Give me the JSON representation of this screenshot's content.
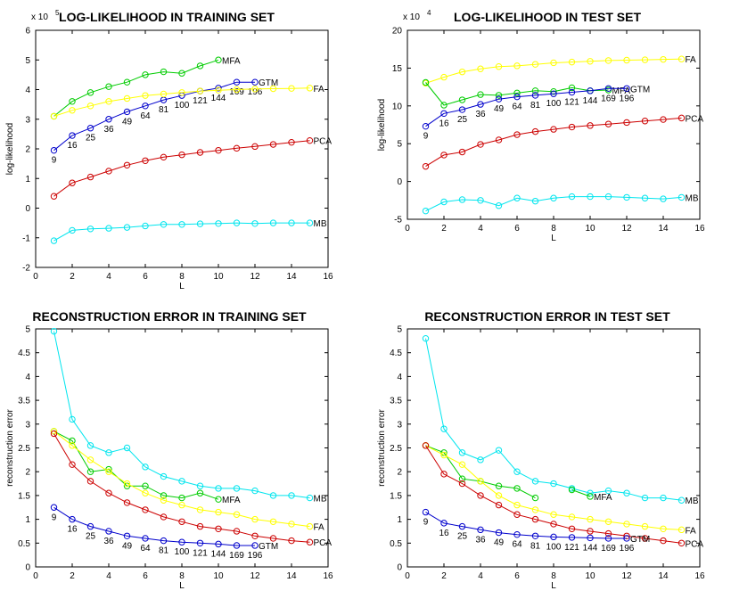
{
  "chart_data": [
    {
      "type": "line",
      "title": "LOG-LIKELIHOOD IN TRAINING SET",
      "xlabel": "L",
      "ylabel": "log-likelihood",
      "y_exponent_label": "x 10",
      "y_exponent_power": "5",
      "xlim": [
        0,
        16
      ],
      "ylim": [
        -2,
        6
      ],
      "xticks": [
        0,
        2,
        4,
        6,
        8,
        10,
        12,
        14,
        16
      ],
      "yticks": [
        -2,
        -1,
        0,
        1,
        2,
        3,
        4,
        5,
        6
      ],
      "grid": false,
      "series": [
        {
          "name": "MFA",
          "color": "#00cc00",
          "x": [
            1,
            2,
            3,
            4,
            5,
            6,
            7,
            8,
            9,
            10
          ],
          "y": [
            3.1,
            3.6,
            3.9,
            4.1,
            4.25,
            4.5,
            4.6,
            4.55,
            4.8,
            5.0
          ]
        },
        {
          "name": "GTM",
          "color": "#0000cc",
          "x": [
            1,
            2,
            3,
            4,
            5,
            6,
            7,
            8,
            9,
            10,
            11,
            12
          ],
          "y": [
            1.95,
            2.45,
            2.7,
            3.0,
            3.25,
            3.45,
            3.65,
            3.8,
            3.95,
            4.05,
            4.25,
            4.25
          ],
          "point_labels": [
            "9",
            "16",
            "25",
            "36",
            "49",
            "64",
            "81",
            "100",
            "121",
            "144",
            "169",
            "196"
          ]
        },
        {
          "name": "FA",
          "color": "#ffff00",
          "x": [
            1,
            2,
            3,
            4,
            5,
            6,
            7,
            8,
            9,
            10,
            11,
            12,
            13,
            14,
            15
          ],
          "y": [
            3.1,
            3.3,
            3.45,
            3.6,
            3.7,
            3.8,
            3.85,
            3.9,
            3.95,
            3.98,
            4.0,
            4.02,
            4.03,
            4.04,
            4.05
          ]
        },
        {
          "name": "PCA",
          "color": "#cc0000",
          "x": [
            1,
            2,
            3,
            4,
            5,
            6,
            7,
            8,
            9,
            10,
            11,
            12,
            13,
            14,
            15
          ],
          "y": [
            0.4,
            0.85,
            1.05,
            1.25,
            1.45,
            1.6,
            1.72,
            1.8,
            1.88,
            1.95,
            2.02,
            2.08,
            2.15,
            2.22,
            2.28
          ]
        },
        {
          "name": "MB",
          "color": "#00e5ee",
          "x": [
            1,
            2,
            3,
            4,
            5,
            6,
            7,
            8,
            9,
            10,
            11,
            12,
            13,
            14,
            15
          ],
          "y": [
            -1.1,
            -0.75,
            -0.7,
            -0.68,
            -0.65,
            -0.6,
            -0.55,
            -0.55,
            -0.53,
            -0.52,
            -0.5,
            -0.52,
            -0.5,
            -0.5,
            -0.5
          ]
        }
      ]
    },
    {
      "type": "line",
      "title": "LOG-LIKELIHOOD IN TEST SET",
      "xlabel": "L",
      "ylabel": "log-likelihood",
      "y_exponent_label": "x 10",
      "y_exponent_power": "4",
      "xlim": [
        0,
        16
      ],
      "ylim": [
        -5,
        20
      ],
      "xticks": [
        0,
        2,
        4,
        6,
        8,
        10,
        12,
        14,
        16
      ],
      "yticks": [
        -5,
        0,
        5,
        10,
        15,
        20
      ],
      "grid": false,
      "series": [
        {
          "name": "FA",
          "color": "#ffff00",
          "x": [
            1,
            2,
            3,
            4,
            5,
            6,
            7,
            8,
            9,
            10,
            11,
            12,
            13,
            14,
            15
          ],
          "y": [
            13.0,
            13.8,
            14.5,
            14.9,
            15.2,
            15.3,
            15.5,
            15.7,
            15.8,
            15.9,
            16.0,
            16.05,
            16.1,
            16.15,
            16.2
          ]
        },
        {
          "name": "MFA",
          "color": "#00cc00",
          "x": [
            1,
            2,
            3,
            4,
            5,
            6,
            7,
            8,
            9,
            10,
            11
          ],
          "y": [
            13.1,
            10.1,
            10.8,
            11.5,
            11.4,
            11.7,
            12.0,
            11.9,
            12.4,
            12.0,
            12.1
          ]
        },
        {
          "name": "GTM",
          "color": "#0000cc",
          "x": [
            1,
            2,
            3,
            4,
            5,
            6,
            7,
            8,
            9,
            10,
            11,
            12
          ],
          "y": [
            7.3,
            9.0,
            9.5,
            10.2,
            10.9,
            11.2,
            11.4,
            11.6,
            11.8,
            12.0,
            12.3,
            12.3
          ],
          "point_labels": [
            "9",
            "16",
            "25",
            "36",
            "49",
            "64",
            "81",
            "100",
            "121",
            "144",
            "169",
            "196"
          ]
        },
        {
          "name": "PCA",
          "color": "#cc0000",
          "x": [
            1,
            2,
            3,
            4,
            5,
            6,
            7,
            8,
            9,
            10,
            11,
            12,
            13,
            14,
            15
          ],
          "y": [
            2.0,
            3.5,
            3.9,
            4.9,
            5.5,
            6.2,
            6.6,
            6.9,
            7.2,
            7.4,
            7.6,
            7.8,
            8.0,
            8.2,
            8.4
          ]
        },
        {
          "name": "MB",
          "color": "#00e5ee",
          "x": [
            1,
            2,
            3,
            4,
            5,
            6,
            7,
            8,
            9,
            10,
            11,
            12,
            13,
            14,
            15
          ],
          "y": [
            -3.9,
            -2.7,
            -2.4,
            -2.5,
            -3.2,
            -2.2,
            -2.6,
            -2.2,
            -2.0,
            -2.0,
            -2.0,
            -2.1,
            -2.2,
            -2.3,
            -2.1
          ]
        }
      ]
    },
    {
      "type": "line",
      "title": "RECONSTRUCTION ERROR IN TRAINING SET",
      "xlabel": "L",
      "ylabel": "reconstruction error",
      "xlim": [
        0,
        16
      ],
      "ylim": [
        0,
        5
      ],
      "xticks": [
        0,
        2,
        4,
        6,
        8,
        10,
        12,
        14,
        16
      ],
      "yticks": [
        0,
        0.5,
        1,
        1.5,
        2,
        2.5,
        3,
        3.5,
        4,
        4.5,
        5
      ],
      "grid": false,
      "series": [
        {
          "name": "MB",
          "color": "#00e5ee",
          "x": [
            1,
            2,
            3,
            4,
            5,
            6,
            7,
            8,
            9,
            10,
            11,
            12,
            13,
            14,
            15
          ],
          "y": [
            4.95,
            3.1,
            2.55,
            2.4,
            2.5,
            2.1,
            1.9,
            1.8,
            1.7,
            1.65,
            1.65,
            1.6,
            1.5,
            1.5,
            1.45
          ]
        },
        {
          "name": "MFA",
          "color": "#00cc00",
          "x": [
            1,
            2,
            3,
            4,
            5,
            6,
            7,
            8,
            9,
            10
          ],
          "y": [
            2.85,
            2.65,
            2.0,
            2.05,
            1.7,
            1.7,
            1.5,
            1.45,
            1.55,
            1.42
          ]
        },
        {
          "name": "FA",
          "color": "#ffff00",
          "x": [
            1,
            2,
            3,
            4,
            5,
            6,
            7,
            8,
            9,
            10,
            11,
            12,
            13,
            14,
            15
          ],
          "y": [
            2.85,
            2.55,
            2.25,
            2.0,
            1.75,
            1.55,
            1.4,
            1.3,
            1.2,
            1.15,
            1.1,
            1.0,
            0.95,
            0.9,
            0.85
          ]
        },
        {
          "name": "PCA",
          "color": "#cc0000",
          "x": [
            1,
            2,
            3,
            4,
            5,
            6,
            7,
            8,
            9,
            10,
            11,
            12,
            13,
            14,
            15
          ],
          "y": [
            2.8,
            2.15,
            1.8,
            1.55,
            1.35,
            1.2,
            1.05,
            0.95,
            0.85,
            0.8,
            0.75,
            0.65,
            0.6,
            0.55,
            0.52
          ]
        },
        {
          "name": "GTM",
          "color": "#0000cc",
          "x": [
            1,
            2,
            3,
            4,
            5,
            6,
            7,
            8,
            9,
            10,
            11,
            12
          ],
          "y": [
            1.25,
            1.0,
            0.85,
            0.75,
            0.65,
            0.6,
            0.55,
            0.52,
            0.5,
            0.48,
            0.45,
            0.45
          ],
          "point_labels": [
            "9",
            "16",
            "25",
            "36",
            "49",
            "64",
            "81",
            "100",
            "121",
            "144",
            "169",
            "196"
          ]
        }
      ]
    },
    {
      "type": "line",
      "title": "RECONSTRUCTION ERROR IN TEST SET",
      "xlabel": "L",
      "ylabel": "reconstruction error",
      "xlim": [
        0,
        16
      ],
      "ylim": [
        0,
        5
      ],
      "xticks": [
        0,
        2,
        4,
        6,
        8,
        10,
        12,
        14,
        16
      ],
      "yticks": [
        0,
        0.5,
        1,
        1.5,
        2,
        2.5,
        3,
        3.5,
        4,
        4.5,
        5
      ],
      "grid": false,
      "series": [
        {
          "name": "MB",
          "color": "#00e5ee",
          "x": [
            1,
            2,
            3,
            4,
            5,
            6,
            7,
            8,
            9,
            10,
            11,
            12,
            13,
            14,
            15
          ],
          "y": [
            4.8,
            2.9,
            2.4,
            2.25,
            2.45,
            2.0,
            1.8,
            1.75,
            1.65,
            1.55,
            1.6,
            1.55,
            1.45,
            1.45,
            1.4
          ]
        },
        {
          "name": "MFA",
          "color": "#00cc00",
          "x": [
            1,
            2,
            3,
            4,
            5,
            6,
            7,
            8,
            9,
            10
          ],
          "y": [
            2.55,
            2.4,
            1.85,
            1.8,
            1.7,
            1.65,
            1.45,
            null,
            1.62,
            1.48
          ]
        },
        {
          "name": "FA",
          "color": "#ffff00",
          "x": [
            1,
            2,
            3,
            4,
            5,
            6,
            7,
            8,
            9,
            10,
            11,
            12,
            13,
            14,
            15
          ],
          "y": [
            2.55,
            2.35,
            2.15,
            1.8,
            1.5,
            1.3,
            1.2,
            1.1,
            1.05,
            1.0,
            0.95,
            0.9,
            0.85,
            0.8,
            0.78
          ]
        },
        {
          "name": "PCA",
          "color": "#cc0000",
          "x": [
            1,
            2,
            3,
            4,
            5,
            6,
            7,
            8,
            9,
            10,
            11,
            12,
            13,
            14,
            15
          ],
          "y": [
            2.55,
            1.95,
            1.75,
            1.5,
            1.3,
            1.1,
            1.0,
            0.9,
            0.8,
            0.75,
            0.7,
            0.65,
            0.6,
            0.55,
            0.5
          ]
        },
        {
          "name": "GTM",
          "color": "#0000cc",
          "x": [
            1,
            2,
            3,
            4,
            5,
            6,
            7,
            8,
            9,
            10,
            11,
            12
          ],
          "y": [
            1.15,
            0.92,
            0.85,
            0.78,
            0.72,
            0.68,
            0.65,
            0.63,
            0.62,
            0.61,
            0.6,
            0.6
          ],
          "point_labels": [
            "9",
            "16",
            "25",
            "36",
            "49",
            "64",
            "81",
            "100",
            "121",
            "144",
            "169",
            "196"
          ]
        }
      ]
    }
  ]
}
